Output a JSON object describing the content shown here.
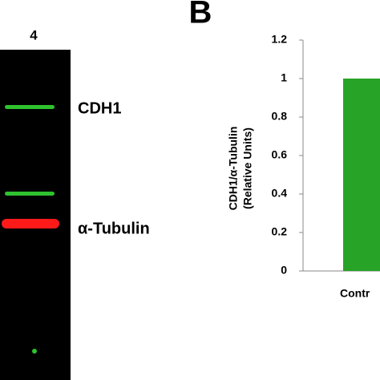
{
  "figure": {
    "lane_label": "4",
    "band_labels": [
      "CDH1",
      "α-Tubulin"
    ],
    "panel_label": "B"
  },
  "chart_data": {
    "type": "bar",
    "categories": [
      "Contr"
    ],
    "values": [
      1
    ],
    "color": "#27a327",
    "ylabel": [
      "CDH1/α-Tubulin",
      "(Relative Units)"
    ],
    "ylim": [
      0,
      1.2
    ],
    "yticks": [
      0,
      0.2,
      0.4,
      0.6,
      0.8,
      1,
      1.2
    ]
  }
}
